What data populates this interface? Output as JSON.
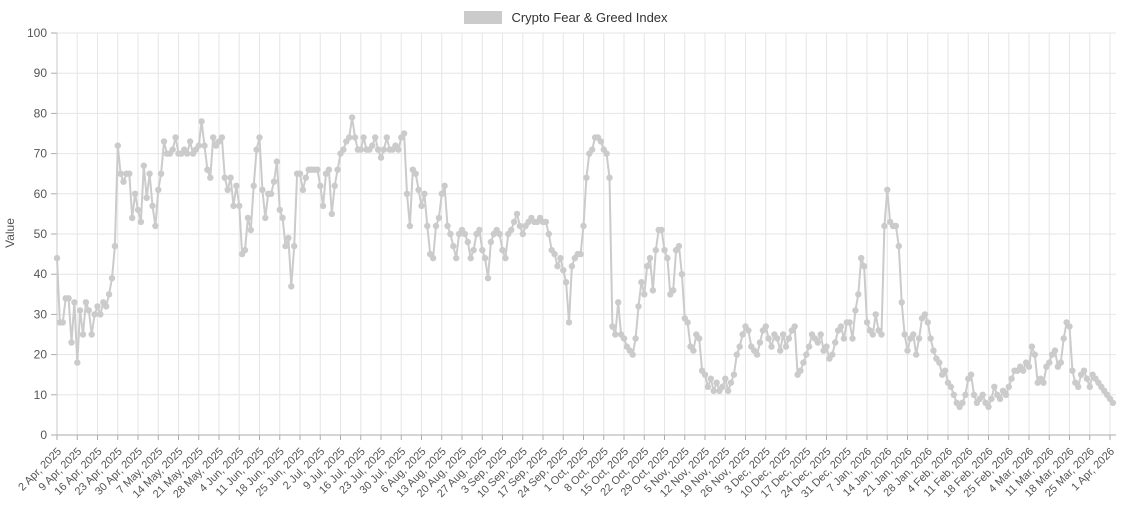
{
  "chart_data": {
    "type": "line",
    "title": "Crypto Fear & Greed Index",
    "ylabel": "Value",
    "ylim": [
      0,
      100
    ],
    "y_tick_interval": 10,
    "y_tick_labels": [
      "0",
      "10",
      "20",
      "30",
      "40",
      "50",
      "60",
      "70",
      "80",
      "90",
      "100"
    ],
    "grid": true,
    "legend_position": "top-center",
    "x_frequency": "daily",
    "x_start": "2 Apr, 2025",
    "x_end": "2 Apr, 2026",
    "x_ticks_every_n_points": 7,
    "x_tick_labels": [
      "2 Apr, 2025",
      "9 Apr, 2025",
      "16 Apr, 2025",
      "23 Apr, 2025",
      "30 Apr, 2025",
      "7 May, 2025",
      "14 May, 2025",
      "21 May, 2025",
      "28 May, 2025",
      "4 Jun, 2025",
      "11 Jun, 2025",
      "18 Jun, 2025",
      "25 Jun, 2025",
      "2 Jul, 2025",
      "9 Jul, 2025",
      "16 Jul, 2025",
      "23 Jul, 2025",
      "30 Jul, 2025",
      "6 Aug, 2025",
      "13 Aug, 2025",
      "20 Aug, 2025",
      "27 Aug, 2025",
      "3 Sep, 2025",
      "10 Sep, 2025",
      "17 Sep, 2025",
      "24 Sep, 2025",
      "1 Oct, 2025",
      "8 Oct, 2025",
      "15 Oct, 2025",
      "22 Oct, 2025",
      "29 Oct, 2025",
      "5 Nov, 2025",
      "12 Nov, 2025",
      "19 Nov, 2025",
      "26 Nov, 2025",
      "3 Dec, 2025",
      "10 Dec, 2025",
      "17 Dec, 2025",
      "24 Dec, 2025",
      "31 Dec, 2025",
      "7 Jan, 2026",
      "14 Jan, 2026",
      "21 Jan, 2026",
      "28 Jan, 2026",
      "4 Feb, 2026",
      "11 Feb, 2026",
      "18 Feb, 2026",
      "25 Feb, 2026",
      "4 Mar, 2026",
      "11 Mar, 2026",
      "18 Mar, 2026",
      "25 Mar, 2026",
      "1 Apr, 2026"
    ],
    "series": [
      {
        "name": "Crypto Fear & Greed Index",
        "color": "#cbcbcb",
        "marker": "circle",
        "values": [
          44,
          28,
          28,
          34,
          34,
          23,
          33,
          18,
          31,
          25,
          33,
          31,
          25,
          30,
          32,
          30,
          33,
          32,
          35,
          39,
          47,
          72,
          65,
          63,
          65,
          65,
          54,
          60,
          56,
          53,
          67,
          59,
          65,
          57,
          52,
          61,
          65,
          73,
          70,
          70,
          71,
          74,
          70,
          70,
          71,
          70,
          73,
          70,
          71,
          72,
          78,
          72,
          66,
          64,
          74,
          72,
          73,
          74,
          64,
          61,
          64,
          57,
          62,
          57,
          45,
          46,
          54,
          51,
          62,
          71,
          74,
          61,
          54,
          60,
          60,
          63,
          68,
          56,
          54,
          47,
          49,
          37,
          47,
          65,
          65,
          61,
          64,
          66,
          66,
          66,
          66,
          62,
          57,
          65,
          66,
          55,
          62,
          66,
          70,
          71,
          73,
          74,
          79,
          74,
          71,
          71,
          74,
          71,
          71,
          72,
          74,
          71,
          69,
          71,
          74,
          71,
          71,
          72,
          71,
          74,
          75,
          60,
          52,
          66,
          65,
          61,
          57,
          60,
          52,
          45,
          44,
          52,
          54,
          60,
          62,
          52,
          50,
          47,
          44,
          50,
          51,
          50,
          48,
          44,
          46,
          50,
          51,
          46,
          44,
          39,
          48,
          50,
          51,
          50,
          46,
          44,
          50,
          51,
          53,
          55,
          52,
          50,
          52,
          53,
          54,
          53,
          53,
          54,
          53,
          53,
          50,
          46,
          45,
          42,
          44,
          41,
          38,
          28,
          42,
          44,
          45,
          45,
          52,
          64,
          70,
          71,
          74,
          74,
          73,
          71,
          70,
          64,
          27,
          25,
          33,
          25,
          24,
          22,
          21,
          20,
          24,
          32,
          38,
          35,
          42,
          44,
          36,
          46,
          51,
          51,
          46,
          44,
          35,
          36,
          46,
          47,
          40,
          29,
          28,
          22,
          21,
          25,
          24,
          16,
          15,
          12,
          14,
          11,
          13,
          11,
          12,
          14,
          11,
          13,
          15,
          20,
          22,
          25,
          27,
          26,
          22,
          21,
          20,
          23,
          26,
          27,
          24,
          22,
          25,
          24,
          21,
          25,
          22,
          24,
          26,
          27,
          15,
          16,
          18,
          20,
          22,
          25,
          24,
          23,
          25,
          21,
          22,
          19,
          20,
          23,
          26,
          27,
          24,
          28,
          28,
          24,
          31,
          35,
          44,
          42,
          28,
          26,
          25,
          30,
          26,
          25,
          52,
          61,
          53,
          52,
          52,
          47,
          33,
          25,
          21,
          24,
          25,
          20,
          24,
          29,
          30,
          28,
          24,
          21,
          19,
          18,
          15,
          16,
          13,
          12,
          10,
          8,
          7,
          8,
          10,
          14,
          15,
          10,
          8,
          9,
          10,
          8,
          7,
          9,
          12,
          10,
          9,
          11,
          10,
          12,
          14,
          16,
          16,
          17,
          16,
          18,
          17,
          22,
          20,
          13,
          14,
          13,
          17,
          18,
          20,
          21,
          17,
          18,
          24,
          28,
          27,
          16,
          13,
          12,
          15,
          16,
          14,
          12,
          15,
          14,
          13,
          12,
          11,
          10,
          9,
          8
        ]
      }
    ],
    "colors": {
      "series_line": "#cbcbcb",
      "grid_line": "#e6e6e6",
      "axis_line": "#ababab",
      "left_spine": "#c9c9c9",
      "tick_label": "#555555",
      "legend_text": "#333333",
      "background": "#ffffff"
    }
  }
}
